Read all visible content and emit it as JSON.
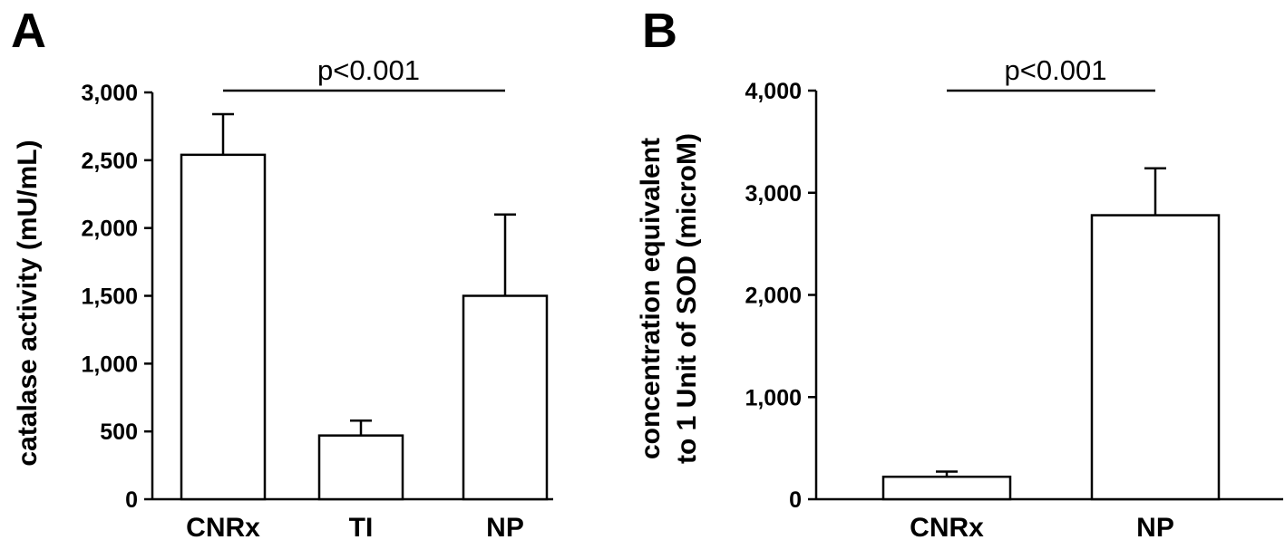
{
  "chart_data": [
    {
      "panel": "A",
      "type": "bar",
      "categories": [
        "CNRx",
        "TI",
        "NP"
      ],
      "values": [
        2540,
        470,
        1500
      ],
      "error": [
        300,
        110,
        600
      ],
      "ylabel": "catalase activity (mU/mL)",
      "xlabel": "",
      "ylim": [
        0,
        3000
      ],
      "yticks": [
        0,
        500,
        1000,
        1500,
        2000,
        2500,
        3000
      ],
      "ytick_labels": [
        "0",
        "500",
        "1,000",
        "1,500",
        "2,000",
        "2,500",
        "3,000"
      ],
      "grid": false,
      "significance": {
        "label": "p<0.001",
        "from": "CNRx",
        "to": "NP"
      }
    },
    {
      "panel": "B",
      "type": "bar",
      "categories": [
        "CNRx",
        "NP"
      ],
      "values": [
        220,
        2780
      ],
      "error": [
        50,
        460
      ],
      "ylabel_lines": [
        "concentration equivalent",
        "to 1 Unit of SOD (microM)"
      ],
      "xlabel": "",
      "ylim": [
        0,
        4000
      ],
      "yticks": [
        0,
        1000,
        2000,
        3000,
        4000
      ],
      "ytick_labels": [
        "0",
        "1,000",
        "2,000",
        "3,000",
        "4,000"
      ],
      "grid": false,
      "significance": {
        "label": "p<0.001",
        "from": "CNRx",
        "to": "NP"
      }
    }
  ]
}
